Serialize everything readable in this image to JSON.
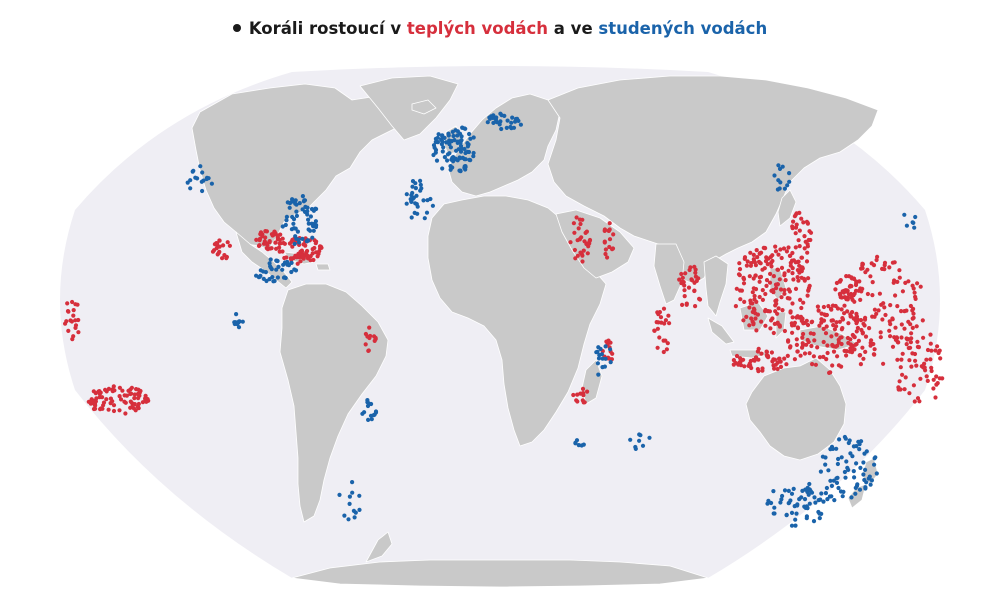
{
  "title": {
    "prefix": "Koráli rostoucí v ",
    "warm": "teplých vodách",
    "middle": " a ve ",
    "cold": "studených vodách"
  },
  "colors": {
    "warm": "#d62f3c",
    "cold": "#1a63aa",
    "ocean": "#efeef4",
    "land": "#c9c9c9",
    "border": "#ffffff",
    "text": "#1a1a1a"
  },
  "map": {
    "projection": "Winkel tripel",
    "layers": [
      "ocean",
      "land",
      "coral-warm",
      "coral-cold"
    ]
  }
}
